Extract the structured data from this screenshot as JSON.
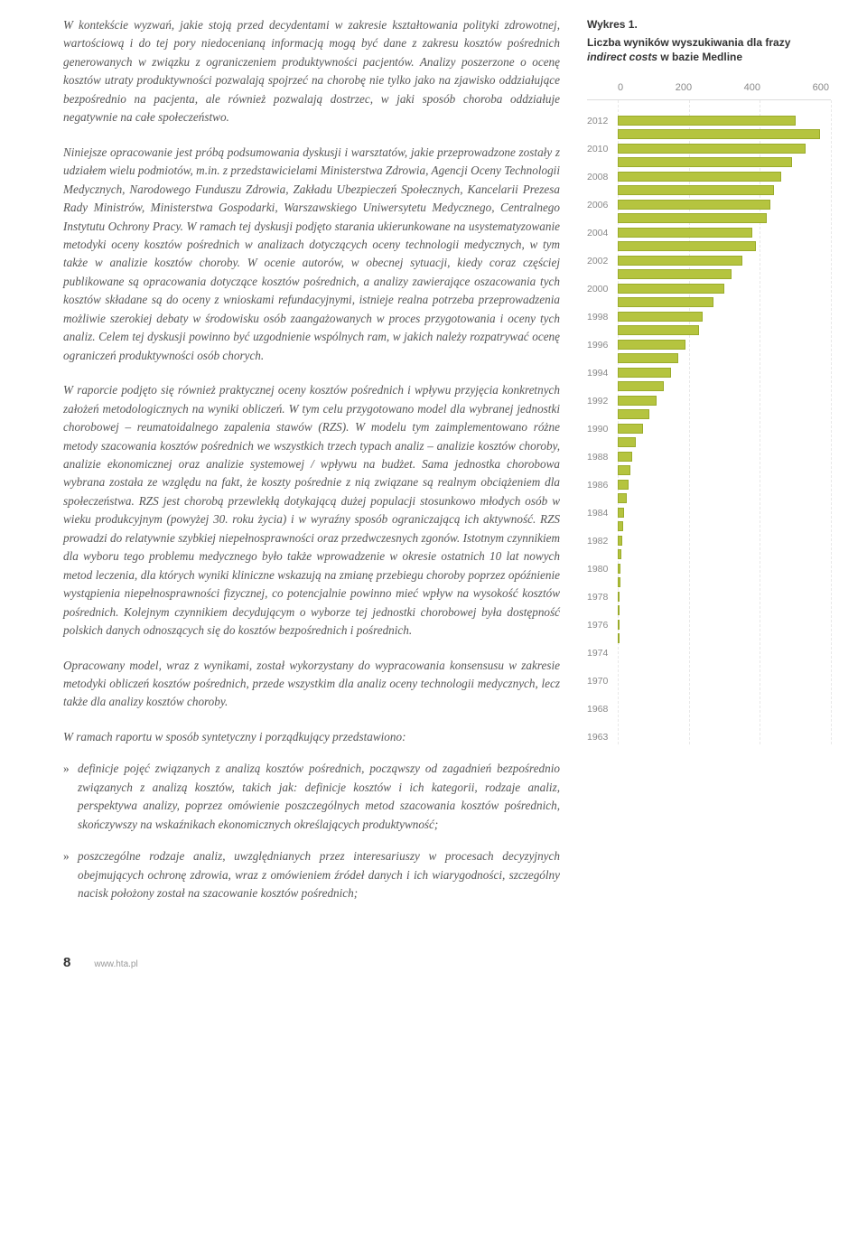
{
  "paragraphs": {
    "p1": "W kontekście wyzwań, jakie stoją przed decydentami w zakresie kształtowania polityki zdrowotnej, wartościową i do tej pory niedocenianą informacją mogą być dane z zakresu kosztów pośrednich generowanych w związku z ograniczeniem produktywności pacjentów. Analizy poszerzone o ocenę kosztów utraty produktywności pozwalają spojrzeć na chorobę nie tylko jako na zjawisko oddziałujące bezpośrednio na pacjenta, ale również pozwalają dostrzec, w jaki sposób choroba oddziałuje negatywnie na całe społeczeństwo.",
    "p2": "Niniejsze opracowanie jest próbą podsumowania dyskusji i warsztatów, jakie przeprowadzone zostały z udziałem wielu podmiotów, m.in. z przedstawicielami Ministerstwa Zdrowia, Agencji Oceny Technologii Medycznych, Narodowego Funduszu Zdrowia, Zakładu Ubezpieczeń Społecznych, Kancelarii Prezesa Rady Ministrów, Ministerstwa Gospodarki, Warszawskiego Uniwersytetu Medycznego, Centralnego Instytutu Ochrony Pracy. W ramach tej dyskusji podjęto starania ukierunkowane na usystematyzowanie metodyki oceny kosztów pośrednich w analizach dotyczących oceny technologii medycznych, w tym także w analizie kosztów choroby. W ocenie autorów, w obecnej sytuacji, kiedy coraz częściej publikowane są opracowania dotyczące kosztów pośrednich, a analizy zawierające oszacowania tych kosztów składane są do oceny z wnioskami refundacyjnymi, istnieje realna potrzeba przeprowadzenia możliwie szerokiej debaty w środowisku osób zaangażowanych w proces przygotowania i oceny tych analiz. Celem tej dyskusji powinno być uzgodnienie wspólnych ram, w jakich należy rozpatrywać ocenę ograniczeń produktywności osób chorych.",
    "p3": "W raporcie podjęto się również praktycznej oceny kosztów pośrednich i wpływu przyjęcia konkretnych założeń metodologicznych na wyniki obliczeń. W tym celu przygotowano model dla wybranej jednostki chorobowej – reumatoidalnego zapalenia stawów (RZS). W modelu tym zaimplementowano różne metody szacowania kosztów pośrednich we wszystkich trzech typach analiz – analizie kosztów choroby, analizie ekonomicznej oraz analizie systemowej / wpływu na budżet. Sama jednostka chorobowa wybrana została ze względu na fakt, że koszty pośrednie z nią związane są realnym obciążeniem dla społeczeństwa. RZS jest chorobą przewlekłą dotykającą dużej populacji stosunkowo młodych osób w wieku produkcyjnym (powyżej 30. roku życia) i w wyraźny sposób ograniczającą ich aktywność. RZS prowadzi do relatywnie szybkiej niepełnosprawności oraz przedwczesnych zgonów. Istotnym czynnikiem dla wyboru tego problemu medycznego było także wprowadzenie w okresie ostatnich 10 lat nowych metod leczenia, dla których wyniki kliniczne wskazują na zmianę przebiegu choroby poprzez opóźnienie wystąpienia niepełnosprawności fizycznej, co potencjalnie powinno mieć wpływ na wysokość kosztów pośrednich. Kolejnym czynnikiem decydującym o wyborze tej jednostki chorobowej była dostępność polskich danych odnoszących się do kosztów bezpośrednich i pośrednich.",
    "p4": "Opracowany model, wraz z wynikami, został wykorzystany do wypracowania konsensusu w zakresie metodyki obliczeń kosztów pośrednich, przede wszystkim dla analiz oceny technologii medycznych, lecz także dla analizy kosztów choroby.",
    "p5": "W ramach raportu w sposób syntetyczny i porządkujący przedstawiono:",
    "b1": "definicje pojęć związanych z analizą kosztów pośrednich, począwszy od zagadnień bezpośrednio związanych z analizą kosztów, takich jak: definicje kosztów i ich kategorii, rodzaje analiz, perspektywa analizy, poprzez omówienie poszczególnych metod szacowania kosztów pośrednich, skończywszy na wskaźnikach ekonomicznych określających produktywność;",
    "b2": "poszczególne rodzaje analiz, uwzględnianych przez interesariuszy w procesach decyzyjnych obejmujących ochronę zdrowia, wraz z omówieniem źródeł danych i ich wiarygodności, szczególny nacisk położony został na szacowanie kosztów pośrednich;"
  },
  "sidebar": {
    "label": "Wykres 1.",
    "title_a": "Liczba wyników wyszukiwania dla frazy ",
    "title_b": "indirect costs",
    "title_c": " w bazie Medline"
  },
  "chart": {
    "type": "horizontal-bar",
    "x_ticks": [
      "0",
      "200",
      "400",
      "600"
    ],
    "xmax": 600,
    "bar_color": "#b5c43f",
    "bar_border": "#9aab2a",
    "grid_color": "#e8e8e8",
    "label_color": "#888888",
    "label_fontsize": 10.5,
    "rows": [
      {
        "year": "",
        "value": 0
      },
      {
        "year": "2012",
        "value": 500
      },
      {
        "year": "",
        "value": 570
      },
      {
        "year": "2010",
        "value": 530
      },
      {
        "year": "",
        "value": 490
      },
      {
        "year": "2008",
        "value": 460
      },
      {
        "year": "",
        "value": 440
      },
      {
        "year": "2006",
        "value": 430
      },
      {
        "year": "",
        "value": 420
      },
      {
        "year": "2004",
        "value": 380
      },
      {
        "year": "",
        "value": 390
      },
      {
        "year": "2002",
        "value": 350
      },
      {
        "year": "",
        "value": 320
      },
      {
        "year": "2000",
        "value": 300
      },
      {
        "year": "",
        "value": 270
      },
      {
        "year": "1998",
        "value": 240
      },
      {
        "year": "",
        "value": 230
      },
      {
        "year": "1996",
        "value": 190
      },
      {
        "year": "",
        "value": 170
      },
      {
        "year": "1994",
        "value": 150
      },
      {
        "year": "",
        "value": 130
      },
      {
        "year": "1992",
        "value": 110
      },
      {
        "year": "",
        "value": 90
      },
      {
        "year": "1990",
        "value": 70
      },
      {
        "year": "",
        "value": 50
      },
      {
        "year": "1988",
        "value": 40
      },
      {
        "year": "",
        "value": 35
      },
      {
        "year": "1986",
        "value": 30
      },
      {
        "year": "",
        "value": 25
      },
      {
        "year": "1984",
        "value": 18
      },
      {
        "year": "",
        "value": 15
      },
      {
        "year": "1982",
        "value": 12
      },
      {
        "year": "",
        "value": 10
      },
      {
        "year": "1980",
        "value": 8
      },
      {
        "year": "",
        "value": 7
      },
      {
        "year": "1978",
        "value": 6
      },
      {
        "year": "",
        "value": 5
      },
      {
        "year": "1976",
        "value": 4
      },
      {
        "year": "",
        "value": 3
      },
      {
        "year": "1974",
        "value": 0
      },
      {
        "year": "",
        "value": 0
      },
      {
        "year": "1970",
        "value": 0
      },
      {
        "year": "",
        "value": 0
      },
      {
        "year": "1968",
        "value": 0
      },
      {
        "year": "",
        "value": 0
      },
      {
        "year": "1963",
        "value": 0
      }
    ]
  },
  "footer": {
    "page": "8",
    "url": "www.hta.pl"
  }
}
